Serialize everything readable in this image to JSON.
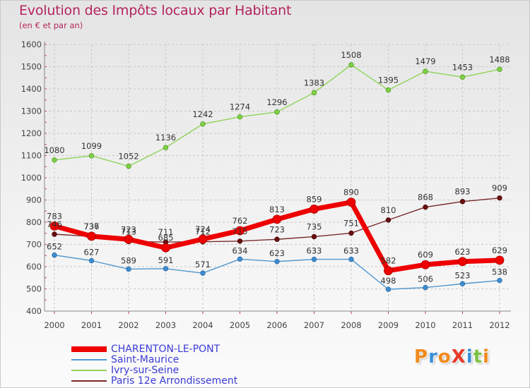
{
  "title": "Evolution des Impôts locaux par Habitant",
  "subtitle": "(en € et par an)",
  "logo": {
    "text": "ProXiti",
    "colors": [
      "#f08a1c",
      "#3a8fd8",
      "#f08a1c",
      "#e83a2a",
      "#3a8fd8",
      "#7cc242",
      "#f08a1c"
    ]
  },
  "chart_data": {
    "type": "line",
    "categories": [
      "2000",
      "2001",
      "2002",
      "2003",
      "2004",
      "2005",
      "2006",
      "2007",
      "2008",
      "2009",
      "2010",
      "2011",
      "2012"
    ],
    "ylim": [
      400,
      1600
    ],
    "yticks": [
      400,
      500,
      600,
      700,
      800,
      900,
      1000,
      1100,
      1200,
      1300,
      1400,
      1500,
      1600
    ],
    "grid": true,
    "xlabel": "",
    "ylabel": "",
    "legend_position": "bottom-left",
    "series": [
      {
        "name": "CHARENTON-LE-PONT",
        "color": "#ee0000",
        "values": [
          783,
          737,
          723,
          685,
          724,
          762,
          813,
          859,
          890,
          582,
          609,
          623,
          629
        ],
        "labels": [
          "783",
          "737",
          "723",
          "685",
          "724",
          "762",
          "813",
          "859",
          "890",
          "582",
          "609",
          "623",
          "629"
        ]
      },
      {
        "name": "Saint-Maurice",
        "color": "#4f97cf",
        "values": [
          652,
          627,
          589,
          591,
          571,
          634,
          623,
          633,
          633,
          498,
          506,
          523,
          538
        ],
        "labels": [
          "652",
          "627",
          "589",
          "591",
          "571",
          "634",
          "623",
          "633",
          "633",
          "498",
          "506",
          "523",
          "538"
        ]
      },
      {
        "name": "Ivry-sur-Seine",
        "color": "#8fd45a",
        "values": [
          1080,
          1099,
          1052,
          1136,
          1242,
          1274,
          1296,
          1383,
          1508,
          1395,
          1479,
          1453,
          1488
        ],
        "labels": [
          "1080",
          "1099",
          "1052",
          "1136",
          "1242",
          "1274",
          "1296",
          "1383",
          "1508",
          "1395",
          "1479",
          "1453",
          "1488"
        ]
      },
      {
        "name": "Paris 12e  Arrondissement",
        "color": "#7a2a2a",
        "values": [
          746,
          736,
          713,
          711,
          712,
          715,
          723,
          735,
          751,
          810,
          868,
          893,
          909
        ],
        "labels": [
          "746",
          "736",
          "713",
          "711",
          "712",
          "715",
          "723",
          "735",
          "751",
          "810",
          "868",
          "893",
          "909"
        ]
      }
    ]
  }
}
